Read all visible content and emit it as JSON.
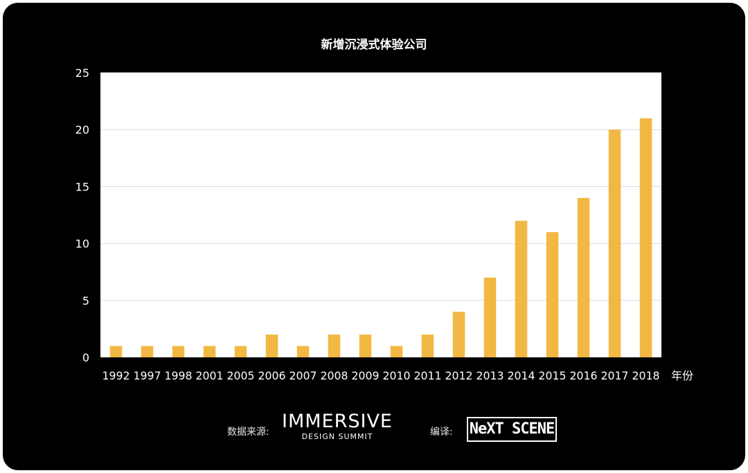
{
  "chart_data": {
    "type": "bar",
    "title": "新增沉浸式体验公司",
    "xlabel": "年份",
    "ylabel": "",
    "categories": [
      "1992",
      "1997",
      "1998",
      "2001",
      "2005",
      "2006",
      "2007",
      "2008",
      "2009",
      "2010",
      "2011",
      "2012",
      "2013",
      "2014",
      "2015",
      "2016",
      "2017",
      "2018"
    ],
    "values": [
      1,
      1,
      1,
      1,
      1,
      2,
      1,
      2,
      2,
      1,
      2,
      4,
      7,
      12,
      11,
      14,
      20,
      21
    ],
    "ylim": [
      0,
      25
    ],
    "yticks": [
      0,
      5,
      10,
      15,
      20,
      25
    ],
    "grid": true,
    "bar_color": "#f2b844",
    "plot_background": "#ffffff",
    "background": "#000000"
  },
  "footer": {
    "source_label": "数据来源:",
    "source_logo_main": "IMMERSIVE",
    "source_logo_sub": "DESIGN SUMMIT",
    "translate_label": "编译:",
    "translate_logo": "NeXT SCENE"
  }
}
